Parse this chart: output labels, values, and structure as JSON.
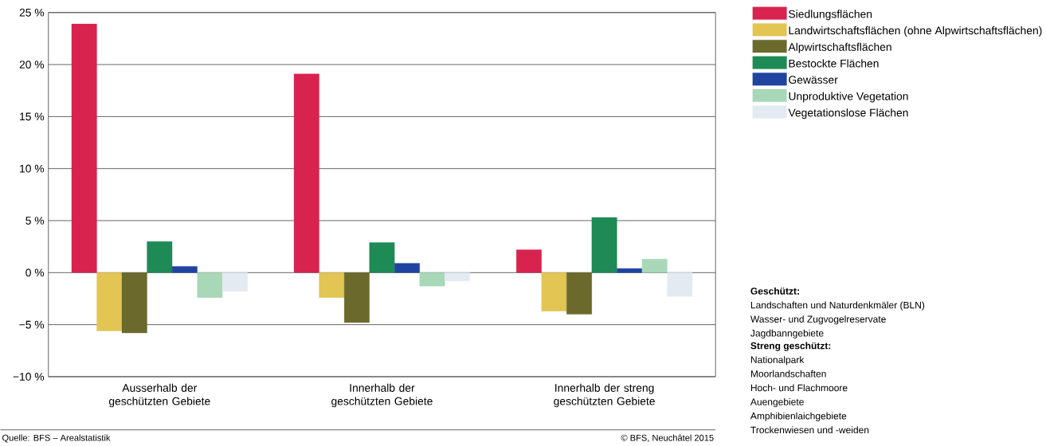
{
  "chart_data": {
    "type": "bar",
    "categories": [
      "Ausserhalb der geschützten Gebiete",
      "Innerhalb der geschützten Gebiete",
      "Innerhalb der streng geschützten Gebiete"
    ],
    "series": [
      {
        "name": "Siedlungsflächen",
        "color": "#d8234f",
        "values": [
          23.9,
          19.1,
          2.2
        ]
      },
      {
        "name": "Landwirtschaftsflächen (ohne Alpwirtschaftsflächen)",
        "color": "#e2c553",
        "values": [
          -5.6,
          -2.4,
          -3.7
        ]
      },
      {
        "name": "Alpwirtschaftsflächen",
        "color": "#6b6a2c",
        "values": [
          -5.8,
          -4.8,
          -4.0
        ]
      },
      {
        "name": "Bestockte Flächen",
        "color": "#1e8a55",
        "values": [
          3.0,
          2.9,
          5.3
        ]
      },
      {
        "name": "Gewässer",
        "color": "#1f44a0",
        "values": [
          0.6,
          0.9,
          0.4
        ]
      },
      {
        "name": "Unproduktive Vegetation",
        "color": "#a8d8b8",
        "values": [
          -2.4,
          -1.3,
          1.3
        ]
      },
      {
        "name": "Vegetationslose Flächen",
        "color": "#e4eaf1",
        "values": [
          -1.8,
          -0.8,
          -2.3
        ]
      }
    ],
    "ylim": [
      -10,
      25
    ],
    "yticks": [
      {
        "value": -10,
        "label": "−10 %"
      },
      {
        "value": -5,
        "label": "−5 %"
      },
      {
        "value": 0,
        "label": "0 %"
      },
      {
        "value": 5,
        "label": "5 %"
      },
      {
        "value": 10,
        "label": "10 %"
      },
      {
        "value": 15,
        "label": "15 %"
      },
      {
        "value": 20,
        "label": "20 %"
      },
      {
        "value": 25,
        "label": "25 %"
      }
    ],
    "grid": "y",
    "legend": "top right",
    "annotations": [
      "Geschützt:",
      "Landschaften und Naturdenkmäler (BLN)",
      "Wasser- und Zugvogelreservate",
      "Jagdbanngebiete",
      "Streng geschützt:",
      "Nationalpark",
      "Moorlandschaften",
      "Hoch- und Flachmoore",
      "Auengebiete",
      "Amphibienlaichgebiete",
      "Trockenwiesen und -weiden",
      "Quelle: BFS – Arealstatistik",
      "© BFS, Neuchâtel 2015"
    ]
  }
}
